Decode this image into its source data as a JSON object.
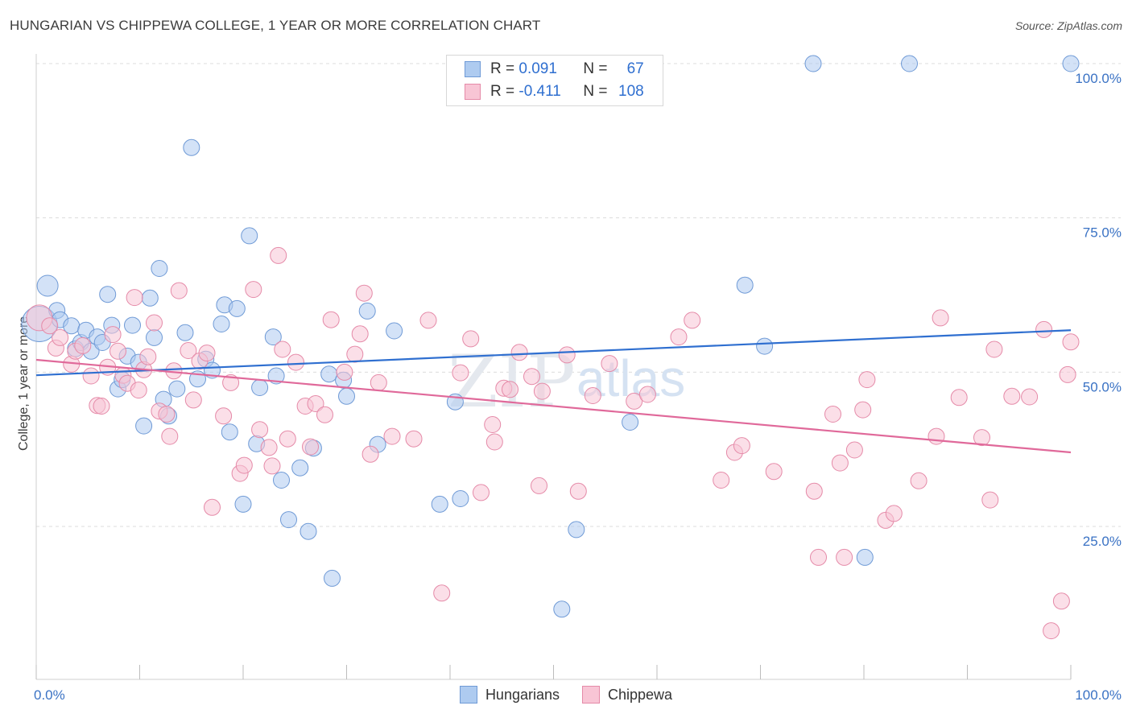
{
  "title": "HUNGARIAN VS CHIPPEWA COLLEGE, 1 YEAR OR MORE CORRELATION CHART",
  "source": "Source: ZipAtlas.com",
  "watermark": {
    "zip": "ZIP",
    "atlas": "atlas"
  },
  "legend": {
    "rows": [
      {
        "r_label": "R = ",
        "r_value": "0.091",
        "n_label": "N = ",
        "n_value": "67",
        "color": "#aecbf0",
        "border": "#6f9ad6"
      },
      {
        "r_label": "R = ",
        "r_value": "-0.411",
        "n_label": "N = ",
        "n_value": "108",
        "color": "#f8c5d5",
        "border": "#e58aa8"
      }
    ]
  },
  "bottom_legend": [
    {
      "label": "Hungarians",
      "color": "#aecbf0",
      "border": "#6f9ad6"
    },
    {
      "label": "Chippewa",
      "color": "#f8c5d5",
      "border": "#e58aa8"
    }
  ],
  "chart_data": {
    "type": "scatter",
    "xlabel": "",
    "ylabel": "College, 1 year or more",
    "xlim": [
      0,
      100
    ],
    "ylim": [
      2,
      102
    ],
    "x_tick_labels": [
      {
        "value": 0,
        "label": "0.0%"
      },
      {
        "value": 100,
        "label": "100.0%"
      }
    ],
    "y_tick_labels": [
      {
        "value": 100,
        "label": "100.0%"
      },
      {
        "value": 75,
        "label": "75.0%"
      },
      {
        "value": 50,
        "label": "50.0%"
      },
      {
        "value": 25,
        "label": "25.0%"
      }
    ],
    "grid": "horizontal dashed",
    "series": [
      {
        "name": "Hungarians",
        "color": "#aecbf0",
        "stroke": "#6f9ad6",
        "trend": {
          "x": [
            0,
            100
          ],
          "y": [
            49.5,
            56.8
          ],
          "color": "#2f6fd0"
        },
        "points": [
          [
            0.3,
            57.8,
            22
          ],
          [
            1.1,
            64.0,
            13
          ],
          [
            2.0,
            60.0,
            10
          ],
          [
            2.3,
            58.5,
            10
          ],
          [
            3.4,
            57.5,
            10
          ],
          [
            3.8,
            53.8,
            10
          ],
          [
            4.3,
            54.8,
            10
          ],
          [
            4.8,
            56.8,
            10
          ],
          [
            5.3,
            53.4,
            10
          ],
          [
            5.9,
            55.7,
            10
          ],
          [
            6.4,
            54.8,
            10
          ],
          [
            6.9,
            62.6,
            10
          ],
          [
            7.3,
            57.6,
            10
          ],
          [
            7.9,
            47.3,
            10
          ],
          [
            8.3,
            48.8,
            10
          ],
          [
            8.8,
            52.6,
            10
          ],
          [
            9.3,
            57.6,
            10
          ],
          [
            9.9,
            51.6,
            10
          ],
          [
            10.4,
            41.3,
            10
          ],
          [
            11.0,
            62.0,
            10
          ],
          [
            11.4,
            55.6,
            10
          ],
          [
            11.9,
            66.8,
            10
          ],
          [
            12.3,
            45.6,
            10
          ],
          [
            12.8,
            42.9,
            10
          ],
          [
            13.6,
            47.3,
            10
          ],
          [
            14.4,
            56.4,
            10
          ],
          [
            15.0,
            86.4,
            10
          ],
          [
            15.6,
            48.9,
            10
          ],
          [
            16.4,
            52.1,
            10
          ],
          [
            17.0,
            50.3,
            10
          ],
          [
            17.9,
            57.8,
            10
          ],
          [
            18.2,
            60.9,
            10
          ],
          [
            18.7,
            40.3,
            10
          ],
          [
            19.4,
            60.3,
            10
          ],
          [
            20.0,
            28.6,
            10
          ],
          [
            20.6,
            72.1,
            10
          ],
          [
            21.3,
            38.4,
            10
          ],
          [
            21.6,
            47.5,
            10
          ],
          [
            22.9,
            55.7,
            10
          ],
          [
            23.2,
            49.4,
            10
          ],
          [
            23.7,
            32.5,
            10
          ],
          [
            24.4,
            26.1,
            10
          ],
          [
            25.5,
            34.5,
            10
          ],
          [
            26.3,
            24.2,
            10
          ],
          [
            26.8,
            37.7,
            10
          ],
          [
            28.3,
            49.7,
            10
          ],
          [
            28.6,
            16.6,
            10
          ],
          [
            29.7,
            48.7,
            10
          ],
          [
            30.0,
            46.1,
            10
          ],
          [
            32.0,
            59.9,
            10
          ],
          [
            33.0,
            38.3,
            10
          ],
          [
            34.6,
            56.7,
            10
          ],
          [
            39.0,
            28.6,
            10
          ],
          [
            40.5,
            45.2,
            10
          ],
          [
            41.0,
            29.5,
            10
          ],
          [
            50.8,
            11.6,
            10
          ],
          [
            52.2,
            24.5,
            10
          ],
          [
            57.4,
            41.9,
            10
          ],
          [
            68.5,
            64.1,
            10
          ],
          [
            70.4,
            54.2,
            10
          ],
          [
            75.1,
            100.0,
            10
          ],
          [
            80.1,
            20.0,
            10
          ],
          [
            84.4,
            100.0,
            10
          ],
          [
            100.0,
            100.0,
            10
          ]
        ]
      },
      {
        "name": "Chippewa",
        "color": "#f8c5d5",
        "stroke": "#e58aa8",
        "trend": {
          "x": [
            0,
            100
          ],
          "y": [
            52.0,
            37.0
          ],
          "color": "#e0699a"
        },
        "points": [
          [
            0.3,
            58.8,
            16
          ],
          [
            1.3,
            57.5,
            10
          ],
          [
            1.9,
            53.9,
            10
          ],
          [
            2.3,
            55.6,
            10
          ],
          [
            3.4,
            51.3,
            10
          ],
          [
            3.8,
            53.4,
            10
          ],
          [
            4.5,
            54.3,
            10
          ],
          [
            5.3,
            49.4,
            10
          ],
          [
            5.9,
            44.6,
            10
          ],
          [
            6.3,
            44.5,
            10
          ],
          [
            6.9,
            50.8,
            10
          ],
          [
            7.4,
            56.1,
            10
          ],
          [
            7.9,
            53.4,
            10
          ],
          [
            8.4,
            49.5,
            10
          ],
          [
            8.8,
            48.2,
            10
          ],
          [
            9.5,
            62.1,
            10
          ],
          [
            9.9,
            47.1,
            10
          ],
          [
            10.4,
            50.4,
            10
          ],
          [
            10.8,
            52.5,
            10
          ],
          [
            11.4,
            58.0,
            10
          ],
          [
            11.9,
            43.7,
            10
          ],
          [
            12.6,
            43.2,
            10
          ],
          [
            12.9,
            39.6,
            10
          ],
          [
            13.3,
            50.2,
            10
          ],
          [
            13.8,
            63.2,
            10
          ],
          [
            14.7,
            53.5,
            10
          ],
          [
            15.2,
            45.5,
            10
          ],
          [
            15.8,
            51.8,
            10
          ],
          [
            16.5,
            53.1,
            10
          ],
          [
            17.0,
            28.1,
            10
          ],
          [
            18.1,
            42.9,
            10
          ],
          [
            18.8,
            48.3,
            10
          ],
          [
            19.7,
            33.6,
            10
          ],
          [
            20.1,
            34.9,
            10
          ],
          [
            21.0,
            63.4,
            10
          ],
          [
            21.6,
            40.7,
            10
          ],
          [
            22.5,
            37.8,
            10
          ],
          [
            22.8,
            34.8,
            10
          ],
          [
            23.4,
            68.9,
            10
          ],
          [
            23.8,
            53.7,
            10
          ],
          [
            24.3,
            39.2,
            10
          ],
          [
            25.1,
            51.6,
            10
          ],
          [
            26.0,
            44.5,
            10
          ],
          [
            26.5,
            37.9,
            10
          ],
          [
            27.0,
            44.9,
            10
          ],
          [
            27.9,
            43.1,
            10
          ],
          [
            28.5,
            58.5,
            10
          ],
          [
            29.8,
            50.0,
            10
          ],
          [
            30.8,
            52.9,
            10
          ],
          [
            31.3,
            56.2,
            10
          ],
          [
            31.7,
            62.8,
            10
          ],
          [
            32.3,
            36.7,
            10
          ],
          [
            33.1,
            48.3,
            10
          ],
          [
            34.4,
            39.6,
            10
          ],
          [
            36.5,
            39.2,
            10
          ],
          [
            37.9,
            58.4,
            10
          ],
          [
            39.2,
            14.2,
            10
          ],
          [
            41.0,
            49.9,
            10
          ],
          [
            42.0,
            55.4,
            10
          ],
          [
            43.0,
            30.5,
            10
          ],
          [
            44.1,
            41.5,
            10
          ],
          [
            44.3,
            38.7,
            10
          ],
          [
            45.2,
            47.4,
            10
          ],
          [
            45.8,
            47.2,
            10
          ],
          [
            46.7,
            53.2,
            10
          ],
          [
            47.9,
            49.3,
            10
          ],
          [
            48.6,
            31.6,
            10
          ],
          [
            48.9,
            46.9,
            10
          ],
          [
            51.3,
            52.8,
            10
          ],
          [
            52.4,
            30.7,
            10
          ],
          [
            53.8,
            46.2,
            10
          ],
          [
            55.4,
            51.4,
            10
          ],
          [
            57.8,
            45.3,
            10
          ],
          [
            59.1,
            46.4,
            10
          ],
          [
            62.1,
            55.7,
            10
          ],
          [
            63.4,
            58.4,
            10
          ],
          [
            66.2,
            32.5,
            10
          ],
          [
            67.5,
            37.0,
            10
          ],
          [
            68.2,
            38.1,
            10
          ],
          [
            71.3,
            33.9,
            10
          ],
          [
            75.2,
            30.7,
            10
          ],
          [
            75.6,
            20.0,
            10
          ],
          [
            77.0,
            43.2,
            10
          ],
          [
            77.7,
            35.3,
            10
          ],
          [
            78.1,
            20.0,
            10
          ],
          [
            79.1,
            37.4,
            10
          ],
          [
            79.9,
            43.9,
            10
          ],
          [
            80.3,
            48.8,
            10
          ],
          [
            82.1,
            26.0,
            10
          ],
          [
            82.9,
            27.1,
            10
          ],
          [
            85.3,
            32.4,
            10
          ],
          [
            87.0,
            39.6,
            10
          ],
          [
            87.4,
            58.8,
            10
          ],
          [
            89.2,
            45.9,
            10
          ],
          [
            91.4,
            39.4,
            10
          ],
          [
            92.2,
            29.3,
            10
          ],
          [
            92.6,
            53.7,
            10
          ],
          [
            94.3,
            46.1,
            10
          ],
          [
            96.0,
            46.0,
            10
          ],
          [
            97.4,
            56.9,
            10
          ],
          [
            98.1,
            8.1,
            10
          ],
          [
            99.1,
            12.9,
            10
          ],
          [
            99.7,
            49.6,
            10
          ],
          [
            100.0,
            54.9,
            10
          ]
        ]
      }
    ]
  }
}
